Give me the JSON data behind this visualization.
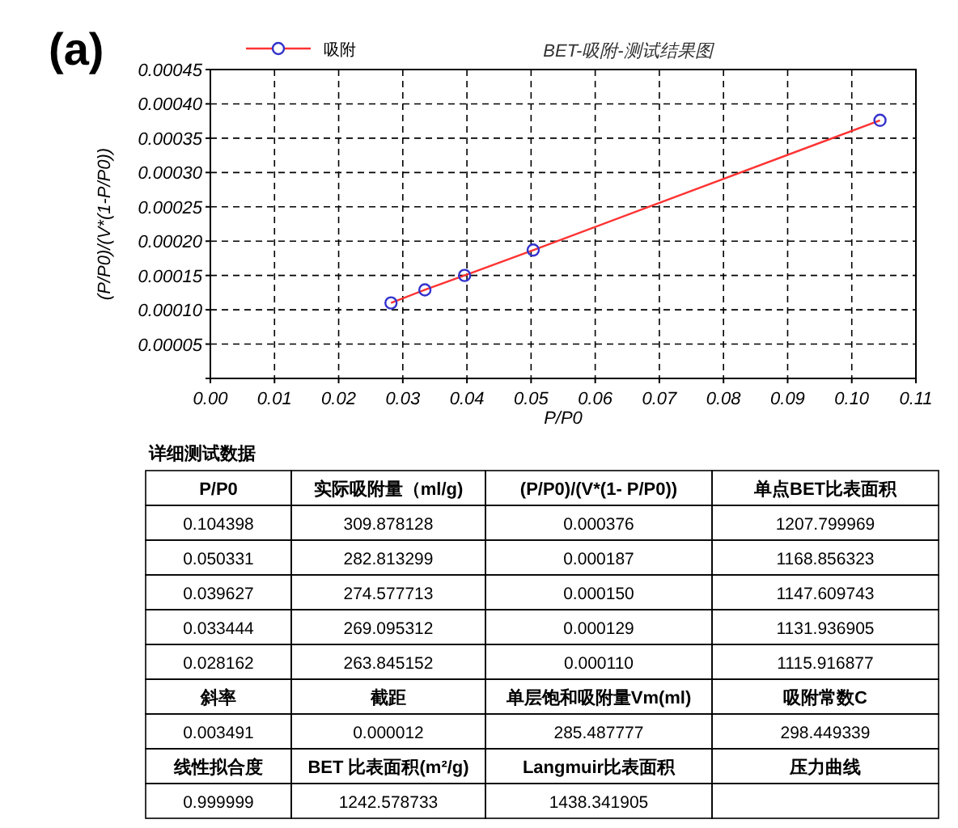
{
  "chart_data": [
    {
      "type": "line",
      "title": "BET-吸附-测试结果图",
      "xlabel": "P/P0",
      "ylabel": "(P/P0)/(V*(1-P/P0))",
      "annotations": [
        "(a)"
      ],
      "x": [
        0.028162,
        0.033444,
        0.039627,
        0.050331,
        0.104398
      ],
      "series": [
        {
          "name": "吸附",
          "color": "#ff3333",
          "colors": [
            "#3333cc",
            "#3333cc",
            "#3333cc",
            "#3333cc",
            "#3333cc"
          ],
          "values": [
            0.00011,
            0.000129,
            0.00015,
            0.000187,
            0.000376
          ]
        }
      ],
      "marker": "circle",
      "line_style": "solid",
      "grid": true,
      "legend": "top left",
      "tick_labels": "xy",
      "xlim": [
        0,
        0.11
      ],
      "xticks": [
        {
          "value": 0,
          "label": "0.00"
        },
        {
          "value": 0.01,
          "label": "0.01"
        },
        {
          "value": 0.02,
          "label": "0.02"
        },
        {
          "value": 0.03,
          "label": "0.03"
        },
        {
          "value": 0.04,
          "label": "0.04"
        },
        {
          "value": 0.05,
          "label": "0.05"
        },
        {
          "value": 0.06,
          "label": "0.06"
        },
        {
          "value": 0.07,
          "label": "0.07"
        },
        {
          "value": 0.08,
          "label": "0.08"
        },
        {
          "value": 0.09,
          "label": "0.09"
        },
        {
          "value": 0.1,
          "label": "0.10"
        },
        {
          "value": 0.11,
          "label": "0.11"
        }
      ],
      "ylim": [
        0,
        0.00045
      ],
      "yticks": [
        {
          "value": 0,
          "label": null
        },
        {
          "value": 5e-05,
          "label": "0.00005"
        },
        {
          "value": 0.0001,
          "label": "0.00010"
        },
        {
          "value": 0.00015,
          "label": "0.00015"
        },
        {
          "value": 0.0002,
          "label": "0.00020"
        },
        {
          "value": 0.00025,
          "label": "0.00025"
        },
        {
          "value": 0.0003,
          "label": "0.00030"
        },
        {
          "value": 0.00035,
          "label": "0.00035"
        },
        {
          "value": 0.0004,
          "label": "0.00040"
        },
        {
          "value": 0.00045,
          "label": "0.00045"
        }
      ]
    },
    {
      "type": "other",
      "title": "详细测试数据",
      "cell_labels": [
        [
          "P/P0",
          "实际吸附量（ml/g)",
          "(P/P0)/(V*(1- P/P0))",
          "单点BET比表面积"
        ],
        [
          "0.104398",
          "309.878128",
          "0.000376",
          "1207.799969"
        ],
        [
          "0.050331",
          "282.813299",
          "0.000187",
          "1168.856323"
        ],
        [
          "0.039627",
          "274.577713",
          "0.000150",
          "1147.609743"
        ],
        [
          "0.033444",
          "269.095312",
          "0.000129",
          "1131.936905"
        ],
        [
          "0.028162",
          "263.845152",
          "0.000110",
          "1115.916877"
        ],
        [
          "斜率",
          "截距",
          "单层饱和吸附量Vm(ml)",
          "吸附常数C"
        ],
        [
          "0.003491",
          "0.000012",
          "285.487777",
          "298.449339"
        ],
        [
          "线性拟合度",
          "BET 比表面积(m²/g)",
          "Langmuir比表面积",
          "压力曲线"
        ],
        [
          "0.999999",
          "1242.578733",
          "1438.341905",
          null
        ]
      ]
    }
  ]
}
